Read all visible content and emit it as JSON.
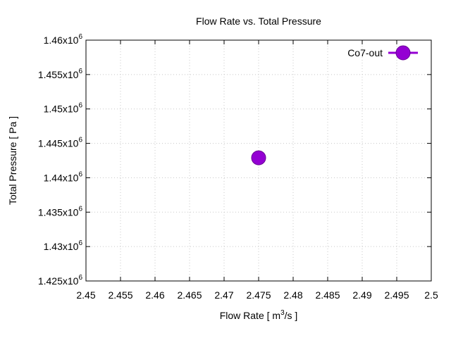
{
  "chart_data": {
    "type": "scatter",
    "title": "Flow Rate vs. Total Pressure",
    "xlabel": "Flow Rate [ m",
    "xlabel_sup": "3",
    "xlabel_suffix": "/s ]",
    "ylabel": "Total Pressure [ Pa ]",
    "xlim": [
      2.45,
      2.5
    ],
    "ylim": [
      1425000,
      1460000
    ],
    "xticks": [
      2.45,
      2.455,
      2.46,
      2.465,
      2.47,
      2.475,
      2.48,
      2.485,
      2.49,
      2.495,
      2.5
    ],
    "xtick_labels": [
      "2.45",
      "2.455",
      "2.46",
      "2.465",
      "2.47",
      "2.475",
      "2.48",
      "2.485",
      "2.49",
      "2.495",
      "2.5"
    ],
    "yticks": [
      1425000,
      1430000,
      1435000,
      1440000,
      1445000,
      1450000,
      1455000,
      1460000
    ],
    "ytick_labels": [
      {
        "base": "1.425x10",
        "exp": "6"
      },
      {
        "base": "1.43x10",
        "exp": "6"
      },
      {
        "base": "1.435x10",
        "exp": "6"
      },
      {
        "base": "1.44x10",
        "exp": "6"
      },
      {
        "base": "1.445x10",
        "exp": "6"
      },
      {
        "base": "1.45x10",
        "exp": "6"
      },
      {
        "base": "1.455x10",
        "exp": "6"
      },
      {
        "base": "1.46x10",
        "exp": "6"
      }
    ],
    "grid": true,
    "legend_position": "top-right",
    "series": [
      {
        "name": "Co7-out",
        "color": "#9400d3",
        "x": [
          2.475
        ],
        "y": [
          1442900
        ]
      }
    ]
  }
}
